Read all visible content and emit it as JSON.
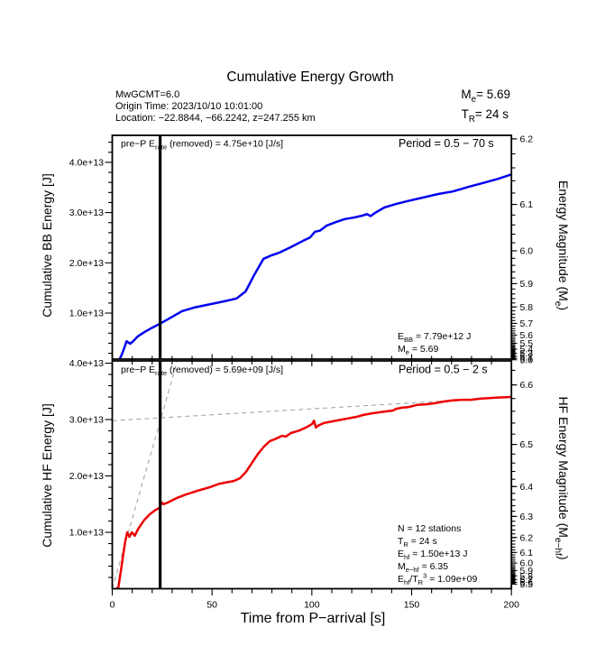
{
  "header": {
    "title": "Cumulative Energy Growth",
    "info_lines": [
      "MwGCMT=6.0",
      "Origin Time: 2023/10/10 10:01:00",
      "Location: −22.8844, −66.2242, z=247.255 km"
    ],
    "me_line": "M_{e}= 5.69",
    "tr_line": "T_{R}= 24 s"
  },
  "top_panel": {
    "pre_p_label": "pre−P E_{rate} (removed) = 4.75e+10 [J/s]",
    "period_label": "Period = 0.5 − 70 s",
    "ylabel": "Cumulative BB Energy [J]",
    "right_ylabel": "Energy Magnitude (M_{e})",
    "annotations": [
      "E_{BB} = 7.79e+12 J",
      "M_{e} = 5.69"
    ]
  },
  "bottom_panel": {
    "pre_p_label": "pre−P E_{rate} (removed) = 5.69e+09 [J/s]",
    "period_label": "Period = 0.5 − 2 s",
    "ylabel": "Cumulative HF Energy [J]",
    "right_ylabel": "HF Energy Magnitude (M_{e−hf})",
    "annotations": [
      "N = 12 stations",
      "T_{R} = 24  s",
      "E_{hf} = 1.50e+13 J",
      "M_{e−hf} = 6.35",
      "E_{hf}/T_{R}^{3} =  1.09e+09"
    ]
  },
  "xaxis": {
    "label": "Time from P−arrival [s]",
    "ticks": [
      0,
      50,
      100,
      150,
      200
    ]
  },
  "chart_data": {
    "type": "line",
    "xlabel": "Time from P−arrival [s]",
    "x_range": [
      0,
      200
    ],
    "marker_line_t": 24,
    "energy_units": "1e13 J",
    "panels": [
      {
        "name": "broadband",
        "title_left": "pre−P E rate (removed) = 4.75e+10 [J/s]",
        "title_right": "Period = 0.5 − 70 s",
        "ylabel": "Cumulative BB Energy [J]",
        "right_ylabel": "Energy Magnitude (Me)",
        "y_range_E13": [
          0,
          4.53
        ],
        "left_ticks_E13": [
          1.0,
          2.0,
          3.0,
          4.0
        ],
        "left_tick_labels": [
          "1.0e+13",
          "2.0e+13",
          "3.0e+13",
          "4.0e+13"
        ],
        "right_magnitude_ticks": [
          6.2,
          6.1,
          6.0,
          5.9,
          5.8,
          5.7,
          5.6,
          5.5,
          5.4,
          5.3,
          5.2,
          5.1,
          5.0
        ],
        "E_BB_J": "7.79e+12",
        "Me": 5.69,
        "series": [
          {
            "name": "cumulative_bb_energy",
            "color": "#0000ee",
            "points_t_E13": [
              [
                2.8,
                0.0
              ],
              [
                3,
                0.03
              ],
              [
                4.5,
                0.15
              ],
              [
                5.5,
                0.25
              ],
              [
                6.5,
                0.36
              ],
              [
                7.2,
                0.44
              ],
              [
                9,
                0.39
              ],
              [
                10.5,
                0.44
              ],
              [
                12.6,
                0.53
              ],
              [
                16,
                0.62
              ],
              [
                20,
                0.71
              ],
              [
                23.5,
                0.78
              ],
              [
                28,
                0.88
              ],
              [
                35,
                1.04
              ],
              [
                41,
                1.11
              ],
              [
                47,
                1.16
              ],
              [
                52,
                1.2
              ],
              [
                57.8,
                1.25
              ],
              [
                62.3,
                1.29
              ],
              [
                66.8,
                1.43
              ],
              [
                71.3,
                1.77
              ],
              [
                75.8,
                2.08
              ],
              [
                79.9,
                2.15
              ],
              [
                83.5,
                2.2
              ],
              [
                89.4,
                2.31
              ],
              [
                95.7,
                2.44
              ],
              [
                99,
                2.5
              ],
              [
                101.6,
                2.62
              ],
              [
                104,
                2.64
              ],
              [
                107.4,
                2.74
              ],
              [
                112,
                2.81
              ],
              [
                116.5,
                2.87
              ],
              [
                121,
                2.9
              ],
              [
                125.5,
                2.94
              ],
              [
                127.5,
                2.97
              ],
              [
                129.5,
                2.93
              ],
              [
                131.5,
                2.99
              ],
              [
                136.3,
                3.1
              ],
              [
                142.2,
                3.17
              ],
              [
                148.1,
                3.23
              ],
              [
                155.8,
                3.3
              ],
              [
                163.4,
                3.37
              ],
              [
                170.7,
                3.42
              ],
              [
                178.3,
                3.51
              ],
              [
                186,
                3.59
              ],
              [
                193.2,
                3.67
              ],
              [
                200,
                3.76
              ]
            ]
          }
        ]
      },
      {
        "name": "high_frequency",
        "title_left": "pre−P E rate (removed) = 5.69e+09 [J/s]",
        "title_right": "Period = 0.5 − 2 s",
        "ylabel": "Cumulative HF Energy [J]",
        "right_ylabel": "HF Energy Magnitude (Me−hf)",
        "y_range_E13": [
          0,
          4.04
        ],
        "left_ticks_E13": [
          1.0,
          2.0,
          3.0,
          4.0
        ],
        "left_tick_labels": [
          "1.0e+13",
          "2.0e+13",
          "3.0e+13",
          "4.0e+13"
        ],
        "right_magnitude_ticks": [
          6.6,
          6.5,
          6.4,
          6.3,
          6.2,
          6.1,
          6.0,
          5.9,
          5.8,
          5.7,
          5.6,
          5.5
        ],
        "N_stations": 12,
        "T_R_s": 24,
        "E_hf_J": "1.50e+13",
        "Me_hf": 6.35,
        "Ehf_over_TR3": "1.09e+09",
        "series": [
          {
            "name": "cumulative_hf_energy",
            "color": "#ee0000",
            "points_t_E13": [
              [
                1.8,
                0.0
              ],
              [
                3,
                0.01
              ],
              [
                4.5,
                0.36
              ],
              [
                5.6,
                0.63
              ],
              [
                6.5,
                0.84
              ],
              [
                7.5,
                1.0
              ],
              [
                8.6,
                0.92
              ],
              [
                9.8,
                1.0
              ],
              [
                11.3,
                0.94
              ],
              [
                12.8,
                1.05
              ],
              [
                15.8,
                1.21
              ],
              [
                18.8,
                1.32
              ],
              [
                21.8,
                1.4
              ],
              [
                23.6,
                1.43
              ],
              [
                24.8,
                1.53
              ],
              [
                25.6,
                1.5
              ],
              [
                27.9,
                1.53
              ],
              [
                32.4,
                1.61
              ],
              [
                36.9,
                1.67
              ],
              [
                42.9,
                1.74
              ],
              [
                48.9,
                1.8
              ],
              [
                53.4,
                1.86
              ],
              [
                56.4,
                1.88
              ],
              [
                60.9,
                1.91
              ],
              [
                64,
                1.96
              ],
              [
                67,
                2.07
              ],
              [
                70,
                2.23
              ],
              [
                73,
                2.39
              ],
              [
                76,
                2.52
              ],
              [
                79,
                2.62
              ],
              [
                82,
                2.66
              ],
              [
                85,
                2.71
              ],
              [
                87,
                2.7
              ],
              [
                89.5,
                2.76
              ],
              [
                94,
                2.81
              ],
              [
                97.1,
                2.86
              ],
              [
                100.1,
                2.92
              ],
              [
                101.1,
                2.98
              ],
              [
                102,
                2.86
              ],
              [
                103.1,
                2.89
              ],
              [
                106.1,
                2.94
              ],
              [
                110.6,
                2.97
              ],
              [
                115.1,
                3.0
              ],
              [
                118.1,
                3.02
              ],
              [
                122.6,
                3.05
              ],
              [
                125.6,
                3.08
              ],
              [
                130.1,
                3.11
              ],
              [
                136.2,
                3.14
              ],
              [
                140.7,
                3.16
              ],
              [
                142.2,
                3.19
              ],
              [
                145.2,
                3.21
              ],
              [
                148.2,
                3.22
              ],
              [
                152.7,
                3.26
              ],
              [
                157.2,
                3.27
              ],
              [
                161.7,
                3.29
              ],
              [
                166.2,
                3.32
              ],
              [
                170.7,
                3.34
              ],
              [
                175.2,
                3.35
              ],
              [
                179.7,
                3.35
              ],
              [
                184.2,
                3.37
              ],
              [
                188.7,
                3.38
              ],
              [
                193.2,
                3.39
              ],
              [
                200,
                3.4
              ]
            ]
          }
        ],
        "reference_dashed_lines": [
          {
            "name": "growth_fit",
            "points_t_E13": [
              [
                0,
                0.0
              ],
              [
                32.6,
                4.04
              ]
            ]
          },
          {
            "name": "plateau_fit",
            "points_t_E13": [
              [
                0,
                2.98
              ],
              [
                200,
                3.4
              ]
            ]
          }
        ]
      }
    ]
  }
}
